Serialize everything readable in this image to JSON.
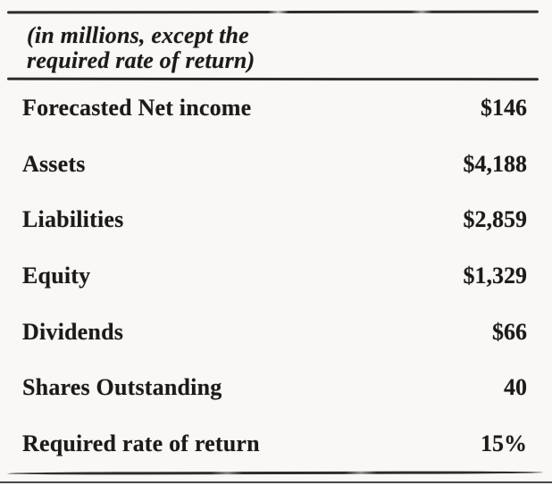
{
  "document": {
    "note": {
      "line1": "(in millions, except the",
      "line2": "required rate of return)"
    },
    "rows": [
      {
        "label": "Forecasted Net income",
        "value": "$146"
      },
      {
        "label": "Assets",
        "value": "$4,188"
      },
      {
        "label": "Liabilities",
        "value": "$2,859"
      },
      {
        "label": "Equity",
        "value": "$1,329"
      },
      {
        "label": "Dividends",
        "value": "$66"
      },
      {
        "label": "Shares Outstanding",
        "value": "40"
      },
      {
        "label": "Required rate of return",
        "value": "15%"
      }
    ]
  },
  "colors": {
    "background": "#f9f8f6",
    "text": "#1c1a17",
    "rule": "#2e2c29",
    "edge_line": "#45484a"
  }
}
